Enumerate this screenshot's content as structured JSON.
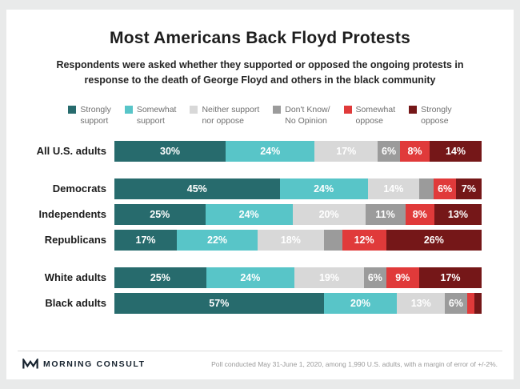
{
  "title": "Most Americans Back Floyd Protests",
  "subtitle": "Respondents were asked whether they supported or opposed the ongoing protests in response to the death of George Floyd and others in the black community",
  "legend": [
    {
      "lines": [
        "Strongly",
        "support"
      ]
    },
    {
      "lines": [
        "Somewhat",
        "support"
      ]
    },
    {
      "lines": [
        "Neither support",
        "nor oppose"
      ]
    },
    {
      "lines": [
        "Don't Know/",
        "No Opinion"
      ]
    },
    {
      "lines": [
        "Somewhat",
        "oppose"
      ]
    },
    {
      "lines": [
        "Strongly",
        "oppose"
      ]
    }
  ],
  "chart_data": {
    "type": "bar",
    "stacked": true,
    "orientation": "horizontal",
    "unit": "%",
    "xlim": [
      0,
      100
    ],
    "colors": [
      "#276b6d",
      "#58c5c8",
      "#d8d8d8",
      "#9b9b9b",
      "#e03a3a",
      "#751718"
    ],
    "series_names": [
      "Strongly support",
      "Somewhat support",
      "Neither support nor oppose",
      "Don't Know/No Opinion",
      "Somewhat oppose",
      "Strongly oppose"
    ],
    "groups": [
      {
        "rows": [
          {
            "label": "All U.S. adults",
            "values": [
              30,
              24,
              17,
              6,
              8,
              14
            ],
            "labels": [
              "30%",
              "24%",
              "17%",
              "6%",
              "8%",
              "14%"
            ]
          }
        ]
      },
      {
        "rows": [
          {
            "label": "Democrats",
            "values": [
              45,
              24,
              14,
              4,
              6,
              7
            ],
            "labels": [
              "45%",
              "24%",
              "14%",
              "",
              "6%",
              "7%"
            ]
          },
          {
            "label": "Independents",
            "values": [
              25,
              24,
              20,
              11,
              8,
              13
            ],
            "labels": [
              "25%",
              "24%",
              "20%",
              "11%",
              "8%",
              "13%"
            ]
          },
          {
            "label": "Republicans",
            "values": [
              17,
              22,
              18,
              5,
              12,
              26
            ],
            "labels": [
              "17%",
              "22%",
              "18%",
              "",
              "12%",
              "26%"
            ]
          }
        ]
      },
      {
        "rows": [
          {
            "label": "White adults",
            "values": [
              25,
              24,
              19,
              6,
              9,
              17
            ],
            "labels": [
              "25%",
              "24%",
              "19%",
              "6%",
              "9%",
              "17%"
            ]
          },
          {
            "label": "Black adults",
            "values": [
              57,
              20,
              13,
              6,
              2,
              2
            ],
            "labels": [
              "57%",
              "20%",
              "13%",
              "6%",
              "",
              ""
            ]
          }
        ]
      }
    ]
  },
  "footer": {
    "logo_text": "MORNING CONSULT",
    "source": "Poll conducted May 31-June 1, 2020, among 1,990 U.S. adults, with a margin of error of +/-2%."
  }
}
